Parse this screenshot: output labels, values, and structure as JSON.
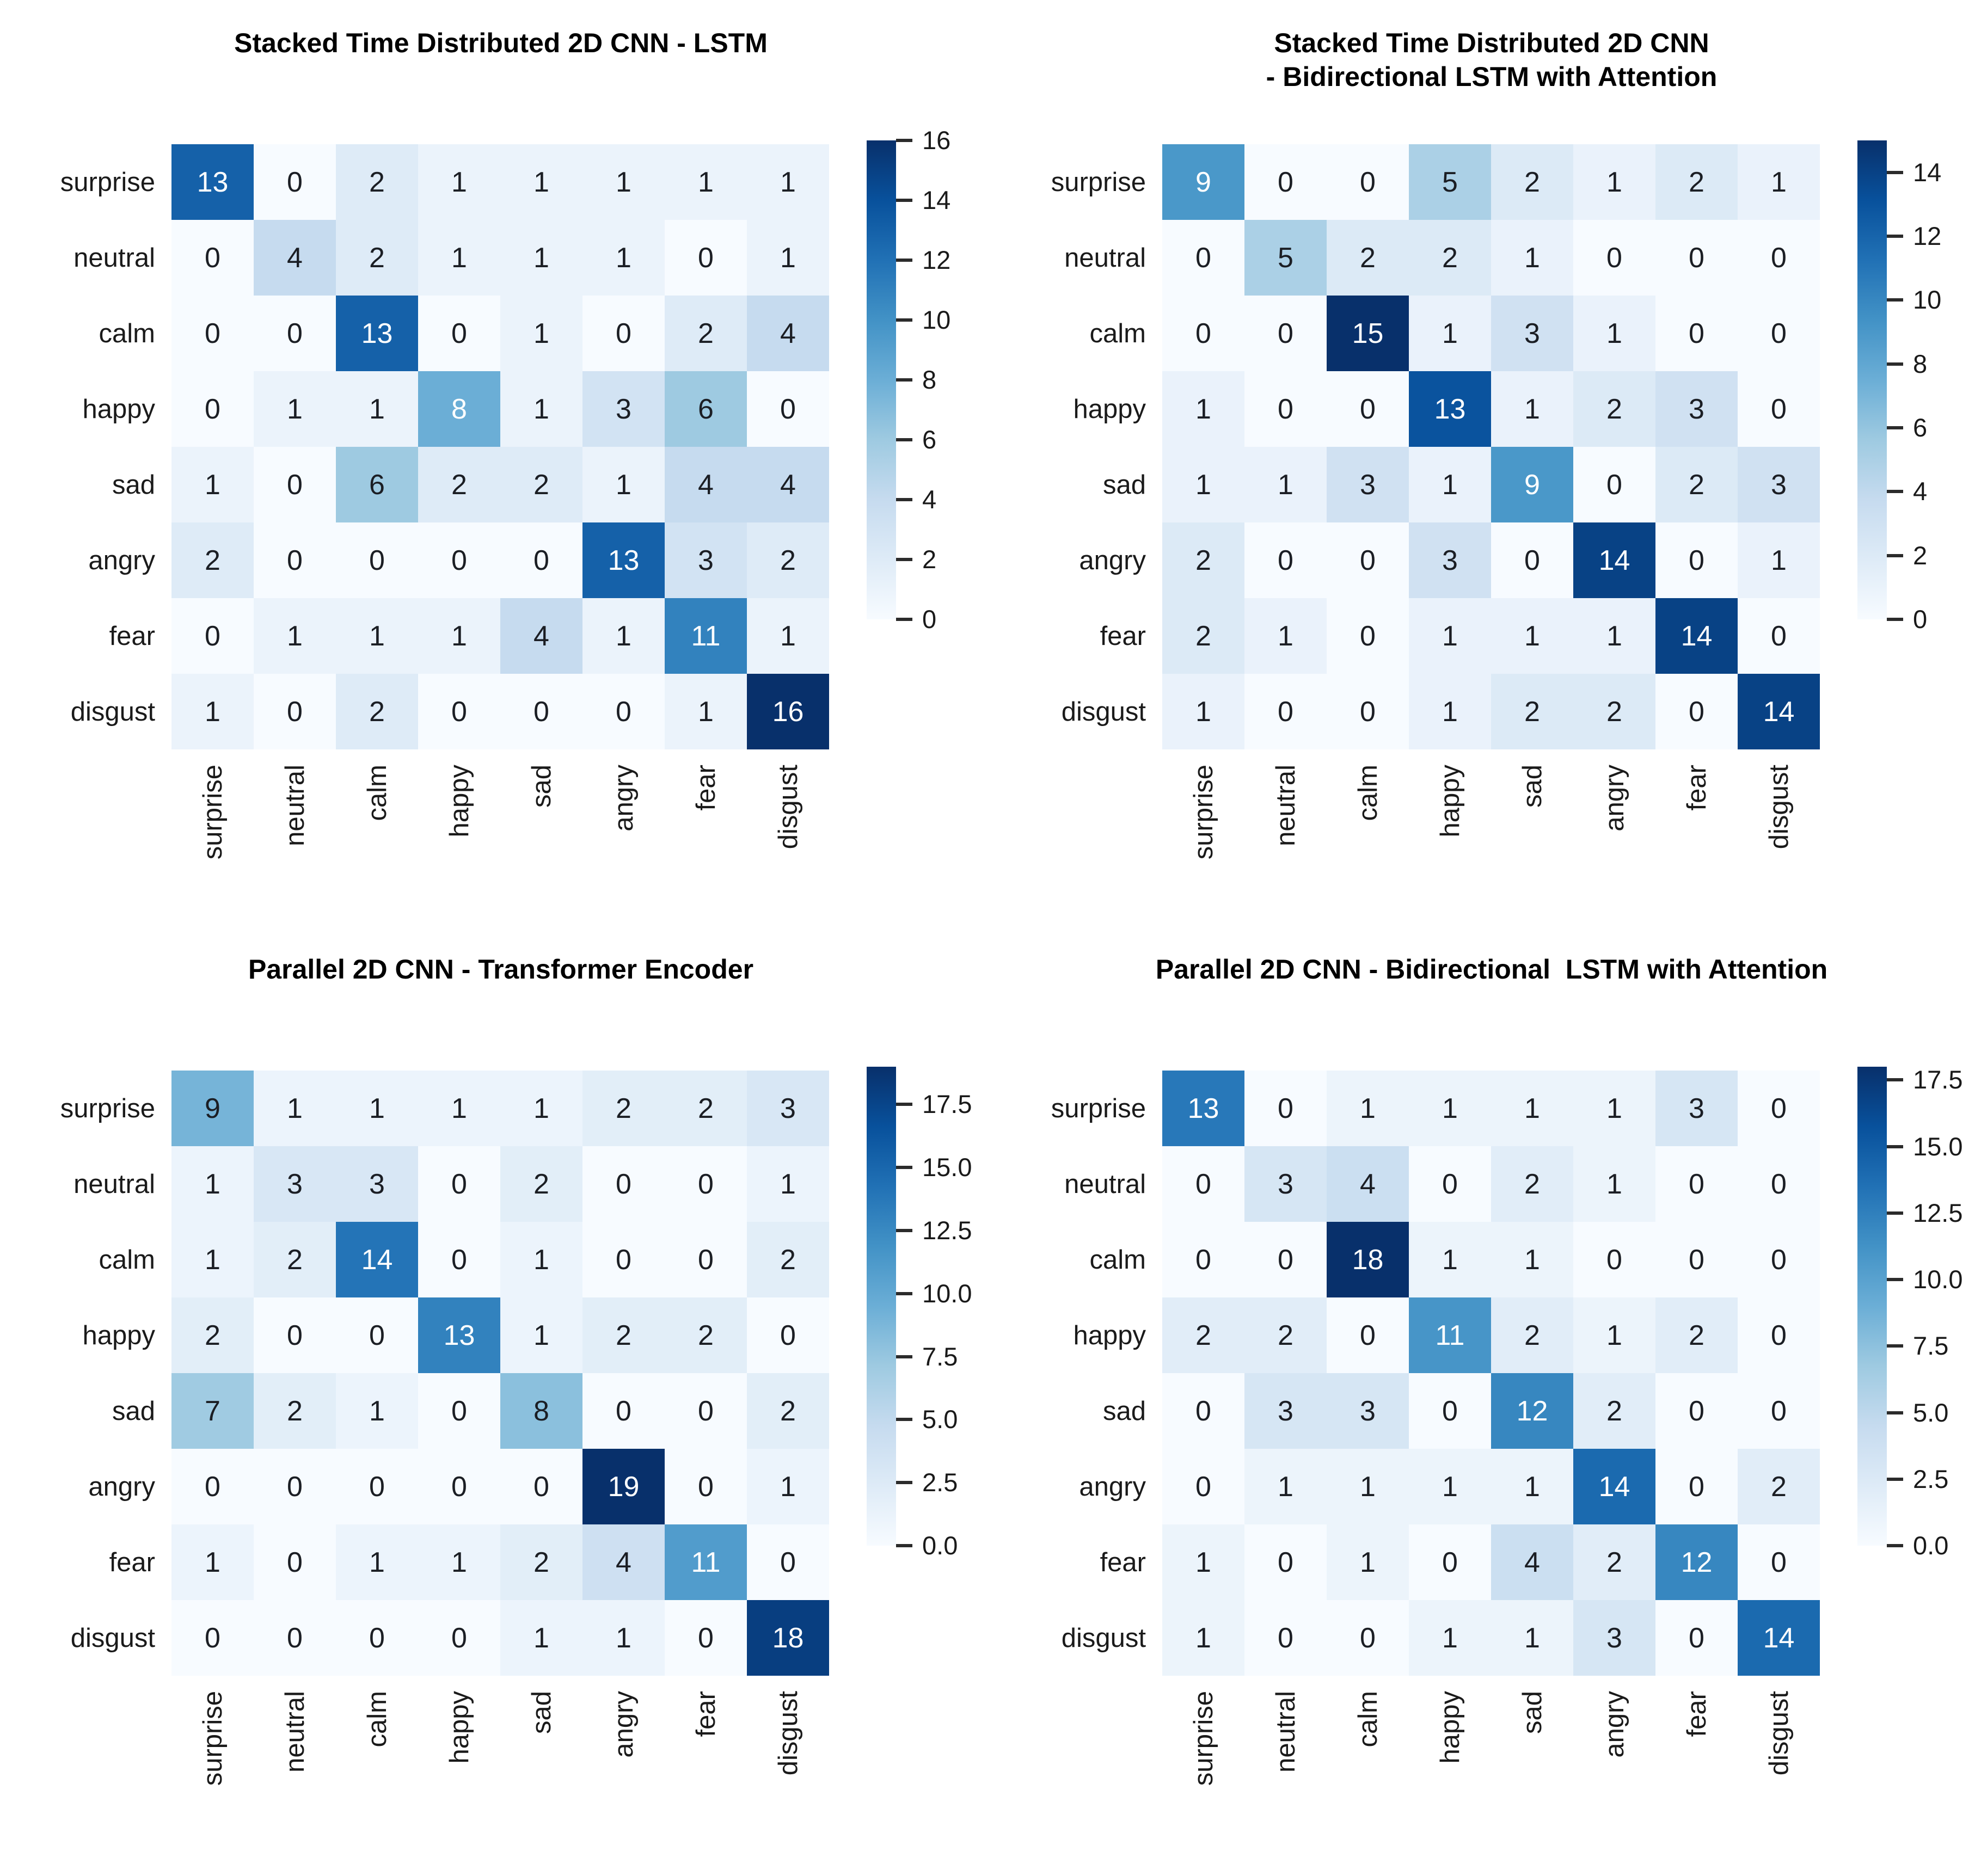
{
  "figure": {
    "background": "#ffffff",
    "description_labels": [
      "surprise",
      "neutral",
      "calm",
      "happy",
      "sad",
      "angry",
      "fear",
      "disgust"
    ]
  },
  "colormap": {
    "name": "Blues",
    "low": "#f7fbff",
    "high": "#08306b"
  },
  "chart_data": [
    {
      "type": "heatmap",
      "title": "Stacked Time Distributed 2D CNN - LSTM",
      "categories": [
        "surprise",
        "neutral",
        "calm",
        "happy",
        "sad",
        "angry",
        "fear",
        "disgust"
      ],
      "xlabel": "",
      "ylabel": "",
      "vmin": 0,
      "vmax": 16,
      "legend_position": "right",
      "grid": false,
      "matrix": [
        [
          13,
          0,
          2,
          1,
          1,
          1,
          1,
          1
        ],
        [
          0,
          4,
          2,
          1,
          1,
          1,
          0,
          1
        ],
        [
          0,
          0,
          13,
          0,
          1,
          0,
          2,
          4
        ],
        [
          0,
          1,
          1,
          8,
          1,
          3,
          6,
          0
        ],
        [
          1,
          0,
          6,
          2,
          2,
          1,
          4,
          4
        ],
        [
          2,
          0,
          0,
          0,
          0,
          13,
          3,
          2
        ],
        [
          0,
          1,
          1,
          1,
          4,
          1,
          11,
          1
        ],
        [
          1,
          0,
          2,
          0,
          0,
          0,
          1,
          16
        ]
      ],
      "colorbar_ticks": [
        {
          "value": 16,
          "label": "16"
        },
        {
          "value": 14,
          "label": "14"
        },
        {
          "value": 12,
          "label": "12"
        },
        {
          "value": 10,
          "label": "10"
        },
        {
          "value": 8,
          "label": "8"
        },
        {
          "value": 6,
          "label": "6"
        },
        {
          "value": 4,
          "label": "4"
        },
        {
          "value": 2,
          "label": "2"
        },
        {
          "value": 0,
          "label": "0"
        }
      ]
    },
    {
      "type": "heatmap",
      "title": "Stacked Time Distributed 2D CNN\n- Bidirectional LSTM with Attention",
      "categories": [
        "surprise",
        "neutral",
        "calm",
        "happy",
        "sad",
        "angry",
        "fear",
        "disgust"
      ],
      "xlabel": "",
      "ylabel": "",
      "vmin": 0,
      "vmax": 15,
      "legend_position": "right",
      "grid": false,
      "matrix": [
        [
          9,
          0,
          0,
          5,
          2,
          1,
          2,
          1
        ],
        [
          0,
          5,
          2,
          2,
          1,
          0,
          0,
          0
        ],
        [
          0,
          0,
          15,
          1,
          3,
          1,
          0,
          0
        ],
        [
          1,
          0,
          0,
          13,
          1,
          2,
          3,
          0
        ],
        [
          1,
          1,
          3,
          1,
          9,
          0,
          2,
          3
        ],
        [
          2,
          0,
          0,
          3,
          0,
          14,
          0,
          1
        ],
        [
          2,
          1,
          0,
          1,
          1,
          1,
          14,
          0
        ],
        [
          1,
          0,
          0,
          1,
          2,
          2,
          0,
          14
        ]
      ],
      "colorbar_ticks": [
        {
          "value": 14,
          "label": "14"
        },
        {
          "value": 12,
          "label": "12"
        },
        {
          "value": 10,
          "label": "10"
        },
        {
          "value": 8,
          "label": "8"
        },
        {
          "value": 6,
          "label": "6"
        },
        {
          "value": 4,
          "label": "4"
        },
        {
          "value": 2,
          "label": "2"
        },
        {
          "value": 0,
          "label": "0"
        }
      ]
    },
    {
      "type": "heatmap",
      "title": "Parallel 2D CNN - Transformer Encoder",
      "categories": [
        "surprise",
        "neutral",
        "calm",
        "happy",
        "sad",
        "angry",
        "fear",
        "disgust"
      ],
      "xlabel": "",
      "ylabel": "",
      "vmin": 0,
      "vmax": 19,
      "legend_position": "right",
      "grid": false,
      "matrix": [
        [
          9,
          1,
          1,
          1,
          1,
          2,
          2,
          3
        ],
        [
          1,
          3,
          3,
          0,
          2,
          0,
          0,
          1
        ],
        [
          1,
          2,
          14,
          0,
          1,
          0,
          0,
          2
        ],
        [
          2,
          0,
          0,
          13,
          1,
          2,
          2,
          0
        ],
        [
          7,
          2,
          1,
          0,
          8,
          0,
          0,
          2
        ],
        [
          0,
          0,
          0,
          0,
          0,
          19,
          0,
          1
        ],
        [
          1,
          0,
          1,
          1,
          2,
          4,
          11,
          0
        ],
        [
          0,
          0,
          0,
          0,
          1,
          1,
          0,
          18
        ]
      ],
      "colorbar_ticks": [
        {
          "value": 17.5,
          "label": "17.5"
        },
        {
          "value": 15,
          "label": "15.0"
        },
        {
          "value": 12.5,
          "label": "12.5"
        },
        {
          "value": 10,
          "label": "10.0"
        },
        {
          "value": 7.5,
          "label": "7.5"
        },
        {
          "value": 5,
          "label": "5.0"
        },
        {
          "value": 2.5,
          "label": "2.5"
        },
        {
          "value": 0,
          "label": "0.0"
        }
      ]
    },
    {
      "type": "heatmap",
      "title": "Parallel 2D CNN - Bidirectional  LSTM with Attention",
      "categories": [
        "surprise",
        "neutral",
        "calm",
        "happy",
        "sad",
        "angry",
        "fear",
        "disgust"
      ],
      "xlabel": "",
      "ylabel": "",
      "vmin": 0,
      "vmax": 18,
      "legend_position": "right",
      "grid": false,
      "matrix": [
        [
          13,
          0,
          1,
          1,
          1,
          1,
          3,
          0
        ],
        [
          0,
          3,
          4,
          0,
          2,
          1,
          0,
          0
        ],
        [
          0,
          0,
          18,
          1,
          1,
          0,
          0,
          0
        ],
        [
          2,
          2,
          0,
          11,
          2,
          1,
          2,
          0
        ],
        [
          0,
          3,
          3,
          0,
          12,
          2,
          0,
          0
        ],
        [
          0,
          1,
          1,
          1,
          1,
          14,
          0,
          2
        ],
        [
          1,
          0,
          1,
          0,
          4,
          2,
          12,
          0
        ],
        [
          1,
          0,
          0,
          1,
          1,
          3,
          0,
          14
        ]
      ],
      "colorbar_ticks": [
        {
          "value": 17.5,
          "label": "17.5"
        },
        {
          "value": 15,
          "label": "15.0"
        },
        {
          "value": 12.5,
          "label": "12.5"
        },
        {
          "value": 10,
          "label": "10.0"
        },
        {
          "value": 7.5,
          "label": "7.5"
        },
        {
          "value": 5,
          "label": "5.0"
        },
        {
          "value": 2.5,
          "label": "2.5"
        },
        {
          "value": 0,
          "label": "0.0"
        }
      ]
    }
  ]
}
